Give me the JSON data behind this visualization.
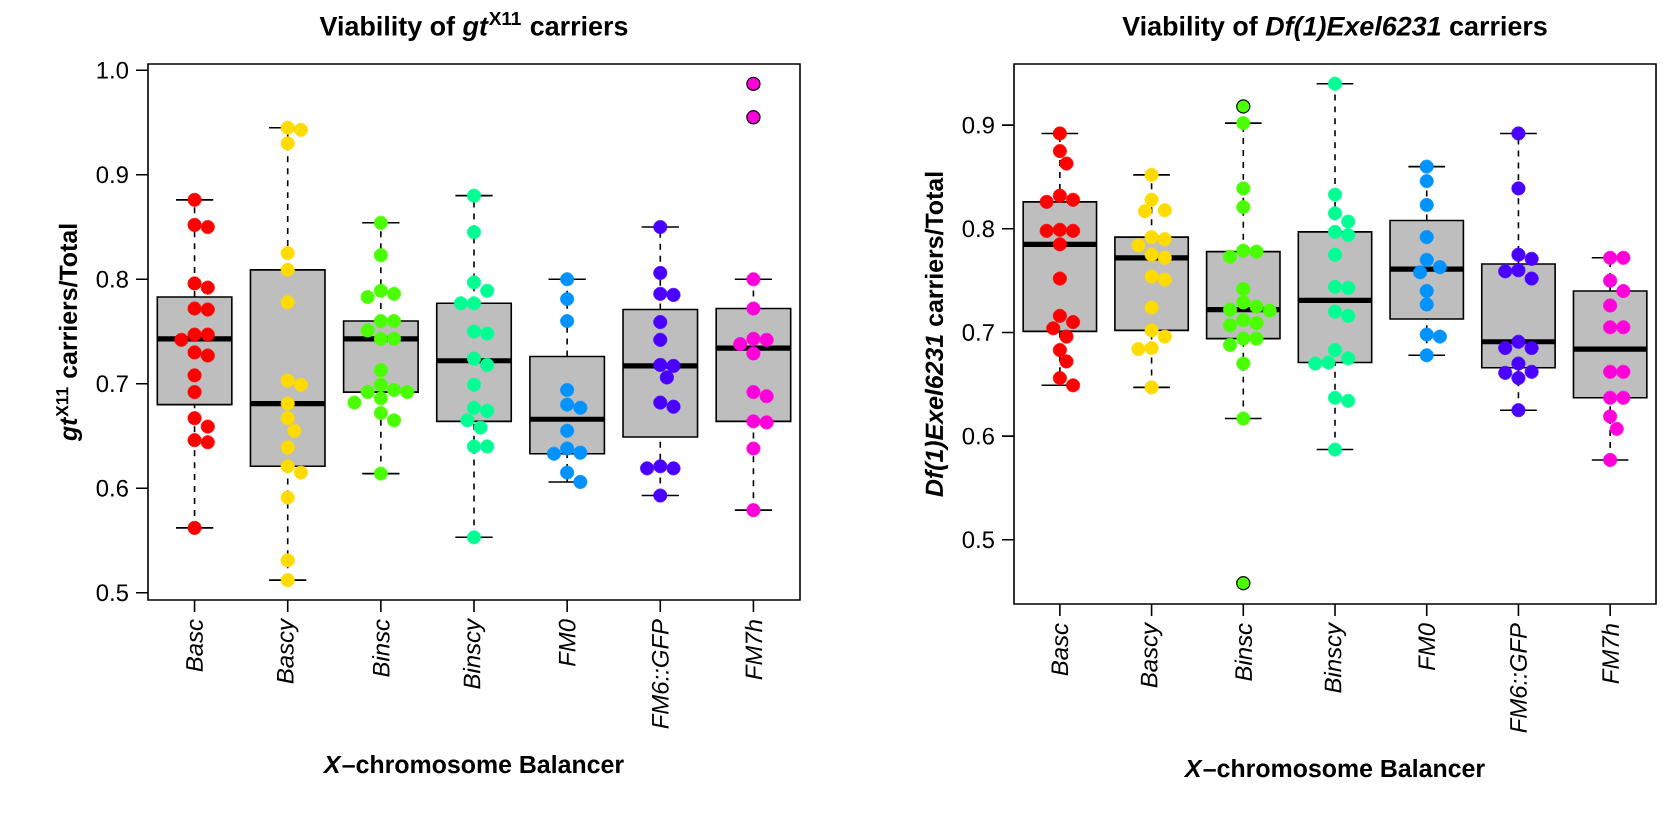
{
  "chart_data": [
    {
      "type": "box",
      "title": "Viability of *gt*$^{X11}$ carriers",
      "xlabel": "*X*–chromosome Balancer",
      "ylabel": "*gt*$^{X11}$ carriers/Total",
      "categories": [
        "Basc",
        "Bascy",
        "Binsc",
        "Binscy",
        "FM0",
        "FM6::GFP",
        "FM7h"
      ],
      "ylim": [
        0.493,
        1.006
      ],
      "yticks": [
        0.5,
        0.6,
        0.7,
        0.8,
        0.9,
        {
          "value": 1,
          "label": "1.0"
        }
      ],
      "boxes": [
        {
          "low": 0.562,
          "q1": 0.68,
          "median": 0.743,
          "q3": 0.783,
          "high": 0.876
        },
        {
          "low": 0.512,
          "q1": 0.621,
          "median": 0.681,
          "q3": 0.809,
          "high": 0.945
        },
        {
          "low": 0.614,
          "q1": 0.692,
          "median": 0.743,
          "q3": 0.76,
          "high": 0.854
        },
        {
          "low": 0.553,
          "q1": 0.664,
          "median": 0.722,
          "q3": 0.777,
          "high": 0.88
        },
        {
          "low": 0.606,
          "q1": 0.633,
          "median": 0.666,
          "q3": 0.726,
          "high": 0.8
        },
        {
          "low": 0.593,
          "q1": 0.649,
          "median": 0.717,
          "q3": 0.771,
          "high": 0.85
        },
        {
          "low": 0.579,
          "q1": 0.664,
          "median": 0.734,
          "q3": 0.772,
          "high": 0.8,
          "outliers": [
            0.987,
            0.955
          ]
        }
      ],
      "series": [
        {
          "type": "scatter",
          "color": "#ff0000",
          "x": [
            "Basc",
            "Basc",
            "Basc",
            "Basc",
            "Basc",
            "Basc",
            "Basc",
            "Basc",
            "Basc",
            "Basc",
            "Basc",
            "Basc",
            "Basc",
            "Basc",
            "Basc",
            "Basc",
            "Basc",
            "Basc",
            "Basc"
          ],
          "values": [
            0.876,
            0.852,
            0.85,
            0.796,
            0.792,
            0.772,
            0.771,
            0.747,
            0.747,
            0.742,
            0.73,
            0.727,
            0.708,
            0.692,
            0.667,
            0.659,
            0.646,
            0.644,
            0.562
          ]
        },
        {
          "type": "scatter",
          "color": "#ffdb00",
          "x": [
            "Bascy",
            "Bascy",
            "Bascy",
            "Bascy",
            "Bascy",
            "Bascy",
            "Bascy",
            "Bascy",
            "Bascy",
            "Bascy",
            "Bascy",
            "Bascy",
            "Bascy",
            "Bascy",
            "Bascy",
            "Bascy",
            "Bascy"
          ],
          "values": [
            0.945,
            0.943,
            0.93,
            0.825,
            0.809,
            0.778,
            0.703,
            0.699,
            0.681,
            0.667,
            0.655,
            0.639,
            0.621,
            0.615,
            0.591,
            0.531,
            0.512
          ]
        },
        {
          "type": "scatter",
          "color": "#49ff00",
          "x": [
            "Binsc",
            "Binsc",
            "Binsc",
            "Binsc",
            "Binsc",
            "Binsc",
            "Binsc",
            "Binsc",
            "Binsc",
            "Binsc",
            "Binsc",
            "Binsc",
            "Binsc",
            "Binsc",
            "Binsc",
            "Binsc",
            "Binsc",
            "Binsc",
            "Binsc",
            "Binsc"
          ],
          "values": [
            0.854,
            0.823,
            0.789,
            0.786,
            0.783,
            0.76,
            0.76,
            0.751,
            0.743,
            0.743,
            0.713,
            0.699,
            0.694,
            0.692,
            0.692,
            0.686,
            0.682,
            0.672,
            0.665,
            0.614
          ]
        },
        {
          "type": "scatter",
          "color": "#00ff92",
          "x": [
            "Binscy",
            "Binscy",
            "Binscy",
            "Binscy",
            "Binscy",
            "Binscy",
            "Binscy",
            "Binscy",
            "Binscy",
            "Binscy",
            "Binscy",
            "Binscy",
            "Binscy",
            "Binscy",
            "Binscy",
            "Binscy",
            "Binscy",
            "Binscy"
          ],
          "values": [
            0.88,
            0.845,
            0.797,
            0.789,
            0.777,
            0.777,
            0.75,
            0.748,
            0.724,
            0.718,
            0.699,
            0.677,
            0.674,
            0.665,
            0.658,
            0.64,
            0.64,
            0.553
          ]
        },
        {
          "type": "scatter",
          "color": "#0092ff",
          "x": [
            "FM0",
            "FM0",
            "FM0",
            "FM0",
            "FM0",
            "FM0",
            "FM0",
            "FM0",
            "FM0",
            "FM0",
            "FM0",
            "FM0"
          ],
          "values": [
            0.8,
            0.781,
            0.76,
            0.694,
            0.68,
            0.677,
            0.655,
            0.638,
            0.634,
            0.633,
            0.615,
            0.606
          ]
        },
        {
          "type": "scatter",
          "color": "#4900ff",
          "x": [
            "FM6::GFP",
            "FM6::GFP",
            "FM6::GFP",
            "FM6::GFP",
            "FM6::GFP",
            "FM6::GFP",
            "FM6::GFP",
            "FM6::GFP",
            "FM6::GFP",
            "FM6::GFP",
            "FM6::GFP",
            "FM6::GFP",
            "FM6::GFP",
            "FM6::GFP",
            "FM6::GFP"
          ],
          "values": [
            0.85,
            0.806,
            0.786,
            0.785,
            0.759,
            0.742,
            0.718,
            0.717,
            0.706,
            0.682,
            0.678,
            0.621,
            0.619,
            0.619,
            0.593
          ]
        },
        {
          "type": "scatter",
          "color": "#ff00db",
          "x": [
            "FM7h",
            "FM7h",
            "FM7h",
            "FM7h",
            "FM7h",
            "FM7h",
            "FM7h",
            "FM7h",
            "FM7h",
            "FM7h",
            "FM7h",
            "FM7h"
          ],
          "values": [
            0.8,
            0.772,
            0.743,
            0.742,
            0.738,
            0.729,
            0.692,
            0.688,
            0.664,
            0.663,
            0.638,
            0.579
          ]
        }
      ]
    },
    {
      "type": "box",
      "title": "Viability of *Df(1)Exel6231* carriers",
      "xlabel": "*X*–chromosome Balancer",
      "ylabel": "*Df(1)Exel6231* carriers/Total",
      "categories": [
        "Basc",
        "Bascy",
        "Binsc",
        "Binscy",
        "FM0",
        "FM6::GFP",
        "FM7h"
      ],
      "ylim": [
        0.438,
        0.959
      ],
      "yticks": [
        0.5,
        0.6,
        0.7,
        0.8,
        0.9
      ],
      "boxes": [
        {
          "low": 0.649,
          "q1": 0.701,
          "median": 0.785,
          "q3": 0.826,
          "high": 0.892
        },
        {
          "low": 0.647,
          "q1": 0.702,
          "median": 0.772,
          "q3": 0.792,
          "high": 0.852
        },
        {
          "low": 0.617,
          "q1": 0.694,
          "median": 0.722,
          "q3": 0.778,
          "high": 0.902,
          "outliers": [
            0.918,
            0.458
          ]
        },
        {
          "low": 0.587,
          "q1": 0.671,
          "median": 0.731,
          "q3": 0.797,
          "high": 0.94
        },
        {
          "low": 0.678,
          "q1": 0.713,
          "median": 0.761,
          "q3": 0.808,
          "high": 0.86
        },
        {
          "low": 0.625,
          "q1": 0.666,
          "median": 0.691,
          "q3": 0.766,
          "high": 0.892
        },
        {
          "low": 0.577,
          "q1": 0.637,
          "median": 0.684,
          "q3": 0.74,
          "high": 0.772
        }
      ],
      "series": [
        {
          "type": "scatter",
          "color": "#ff0000",
          "x": [
            "Basc",
            "Basc",
            "Basc",
            "Basc",
            "Basc",
            "Basc",
            "Basc",
            "Basc",
            "Basc",
            "Basc",
            "Basc",
            "Basc",
            "Basc",
            "Basc",
            "Basc",
            "Basc",
            "Basc",
            "Basc",
            "Basc"
          ],
          "values": [
            0.892,
            0.875,
            0.863,
            0.832,
            0.828,
            0.826,
            0.799,
            0.798,
            0.798,
            0.785,
            0.752,
            0.716,
            0.71,
            0.704,
            0.696,
            0.683,
            0.672,
            0.656,
            0.649
          ]
        },
        {
          "type": "scatter",
          "color": "#ffdb00",
          "x": [
            "Bascy",
            "Bascy",
            "Bascy",
            "Bascy",
            "Bascy",
            "Bascy",
            "Bascy",
            "Bascy",
            "Bascy",
            "Bascy",
            "Bascy",
            "Bascy",
            "Bascy",
            "Bascy",
            "Bascy",
            "Bascy",
            "Bascy"
          ],
          "values": [
            0.852,
            0.828,
            0.818,
            0.817,
            0.792,
            0.79,
            0.784,
            0.775,
            0.772,
            0.754,
            0.751,
            0.724,
            0.702,
            0.696,
            0.685,
            0.684,
            0.647
          ]
        },
        {
          "type": "scatter",
          "color": "#49ff00",
          "x": [
            "Binsc",
            "Binsc",
            "Binsc",
            "Binsc",
            "Binsc",
            "Binsc",
            "Binsc",
            "Binsc",
            "Binsc",
            "Binsc",
            "Binsc",
            "Binsc",
            "Binsc",
            "Binsc",
            "Binsc",
            "Binsc",
            "Binsc",
            "Binsc",
            "Binsc"
          ],
          "values": [
            0.902,
            0.839,
            0.821,
            0.779,
            0.778,
            0.773,
            0.742,
            0.729,
            0.725,
            0.722,
            0.721,
            0.712,
            0.709,
            0.707,
            0.694,
            0.694,
            0.688,
            0.67,
            0.617
          ]
        },
        {
          "type": "scatter",
          "color": "#00ff92",
          "x": [
            "Binscy",
            "Binscy",
            "Binscy",
            "Binscy",
            "Binscy",
            "Binscy",
            "Binscy",
            "Binscy",
            "Binscy",
            "Binscy",
            "Binscy",
            "Binscy",
            "Binscy",
            "Binscy",
            "Binscy",
            "Binscy",
            "Binscy",
            "Binscy"
          ],
          "values": [
            0.94,
            0.833,
            0.815,
            0.807,
            0.797,
            0.794,
            0.775,
            0.744,
            0.743,
            0.72,
            0.716,
            0.683,
            0.675,
            0.671,
            0.67,
            0.637,
            0.634,
            0.587
          ]
        },
        {
          "type": "scatter",
          "color": "#0092ff",
          "x": [
            "FM0",
            "FM0",
            "FM0",
            "FM0",
            "FM0",
            "FM0",
            "FM0",
            "FM0",
            "FM0",
            "FM0",
            "FM0",
            "FM0"
          ],
          "values": [
            0.86,
            0.846,
            0.823,
            0.792,
            0.77,
            0.763,
            0.758,
            0.74,
            0.727,
            0.698,
            0.696,
            0.678
          ]
        },
        {
          "type": "scatter",
          "color": "#4900ff",
          "x": [
            "FM6::GFP",
            "FM6::GFP",
            "FM6::GFP",
            "FM6::GFP",
            "FM6::GFP",
            "FM6::GFP",
            "FM6::GFP",
            "FM6::GFP",
            "FM6::GFP",
            "FM6::GFP",
            "FM6::GFP",
            "FM6::GFP",
            "FM6::GFP",
            "FM6::GFP",
            "FM6::GFP"
          ],
          "values": [
            0.892,
            0.839,
            0.775,
            0.771,
            0.76,
            0.759,
            0.752,
            0.691,
            0.685,
            0.685,
            0.67,
            0.662,
            0.661,
            0.656,
            0.625
          ]
        },
        {
          "type": "scatter",
          "color": "#ff00db",
          "x": [
            "FM7h",
            "FM7h",
            "FM7h",
            "FM7h",
            "FM7h",
            "FM7h",
            "FM7h",
            "FM7h",
            "FM7h",
            "FM7h",
            "FM7h",
            "FM7h",
            "FM7h",
            "FM7h"
          ],
          "values": [
            0.772,
            0.772,
            0.75,
            0.74,
            0.726,
            0.705,
            0.705,
            0.662,
            0.662,
            0.637,
            0.637,
            0.619,
            0.607,
            0.577
          ]
        }
      ]
    }
  ]
}
